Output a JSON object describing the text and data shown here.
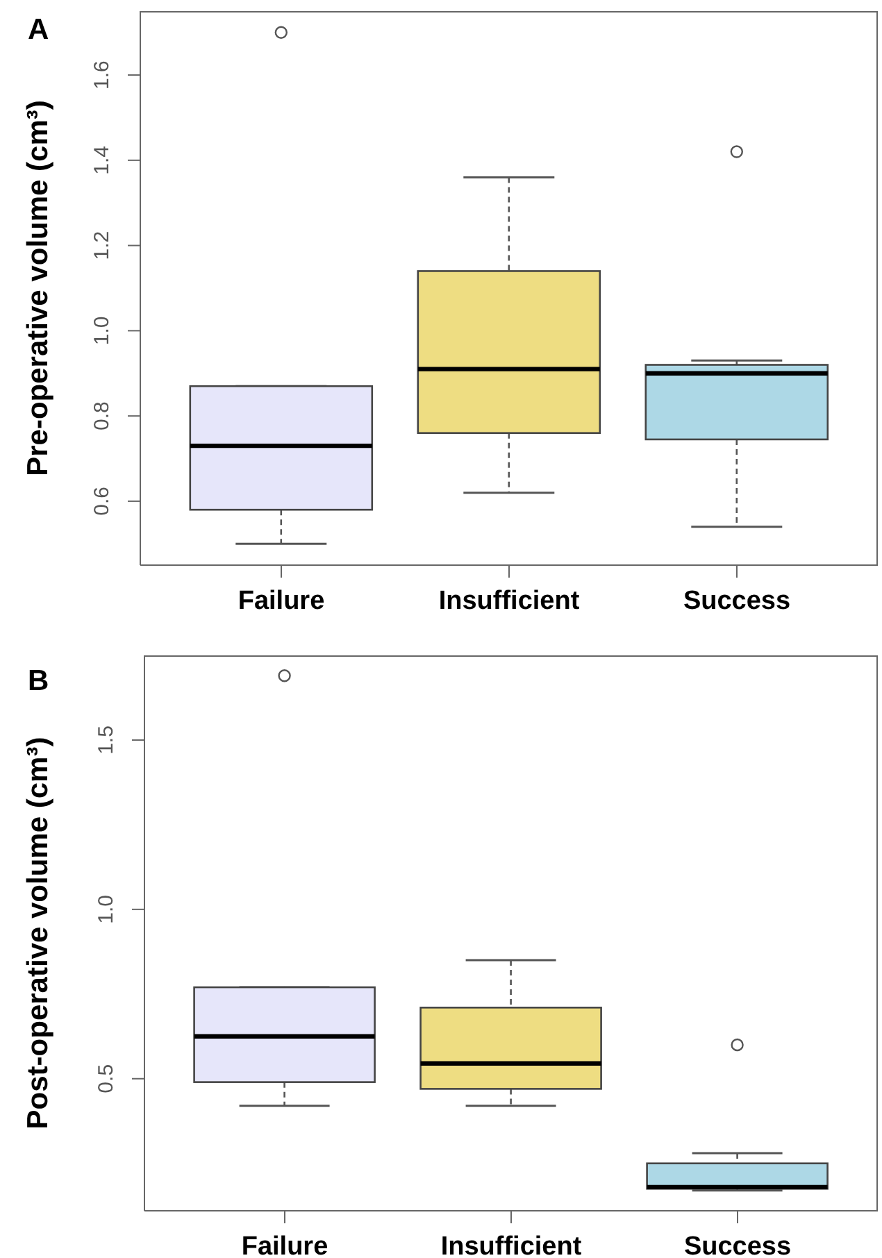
{
  "chart_data": [
    {
      "type": "box",
      "title": "A",
      "ylabel": "Pre-operative volume (cm³)",
      "categories": [
        "Failure",
        "Insufficient",
        "Success"
      ],
      "colors": [
        "#e6e6fa",
        "#eedd82",
        "#add8e6"
      ],
      "marker": "circle",
      "boxes": [
        {
          "low": 0.5,
          "q1": 0.58,
          "median": 0.73,
          "q3": 0.87,
          "high": 0.87,
          "outliers": [
            1.7
          ]
        },
        {
          "low": 0.62,
          "q1": 0.76,
          "median": 0.91,
          "q3": 1.14,
          "high": 1.36
        },
        {
          "low": 0.54,
          "q1": 0.745,
          "median": 0.9,
          "q3": 0.92,
          "high": 0.93,
          "outliers": [
            1.42
          ]
        }
      ],
      "ylim": [
        0.45,
        1.75
      ],
      "yticks": [
        0.6,
        0.8,
        {
          "value": 1,
          "label": "1.0"
        },
        1.2,
        1.4,
        1.6
      ]
    },
    {
      "type": "box",
      "title": "B",
      "ylabel": "Post-operative volume (cm³)",
      "categories": [
        "Failure",
        "Insufficient",
        "Success"
      ],
      "colors": [
        "#e6e6fa",
        "#eedd82",
        "#add8e6"
      ],
      "marker": "circle",
      "boxes": [
        {
          "low": 0.42,
          "q1": 0.49,
          "median": 0.625,
          "q3": 0.77,
          "high": 0.77,
          "outliers": [
            1.69
          ]
        },
        {
          "low": 0.42,
          "q1": 0.47,
          "median": 0.545,
          "q3": 0.71,
          "high": 0.85
        },
        {
          "low": 0.17,
          "q1": 0.175,
          "median": 0.18,
          "q3": 0.25,
          "high": 0.28,
          "outliers": [
            0.6
          ]
        }
      ],
      "ylim": [
        0.11,
        1.75
      ],
      "yticks": [
        0.5,
        {
          "value": 1,
          "label": "1.0"
        },
        1.5
      ]
    }
  ]
}
